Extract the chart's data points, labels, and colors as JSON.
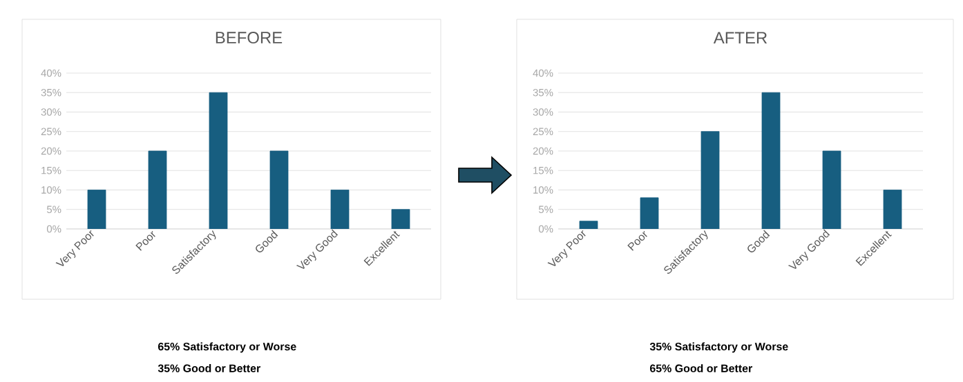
{
  "chart_data": [
    {
      "type": "bar",
      "title": "BEFORE",
      "categories": [
        "Very Poor",
        "Poor",
        "Satisfactory",
        "Good",
        "Very Good",
        "Excellent"
      ],
      "values": [
        10,
        20,
        35,
        20,
        10,
        5
      ],
      "color": "#175e80",
      "ylim": [
        0,
        40
      ],
      "yticks": [
        {
          "value": 0,
          "label": "0%"
        },
        {
          "value": 5,
          "label": "5%"
        },
        {
          "value": 10,
          "label": "10%"
        },
        {
          "value": 15,
          "label": "15%"
        },
        {
          "value": 20,
          "label": "20%"
        },
        {
          "value": 25,
          "label": "25%"
        },
        {
          "value": 30,
          "label": "30%"
        },
        {
          "value": 35,
          "label": "35%"
        },
        {
          "value": 40,
          "label": "40%"
        }
      ],
      "grid": "y",
      "annotations": [
        "65% Satisfactory or Worse",
        "35% Good or Better"
      ]
    },
    {
      "type": "bar",
      "title": "AFTER",
      "categories": [
        "Very Poor",
        "Poor",
        "Satisfactory",
        "Good",
        "Very Good",
        "Excellent"
      ],
      "values": [
        2,
        8,
        25,
        35,
        20,
        10
      ],
      "color": "#175e80",
      "ylim": [
        0,
        40
      ],
      "yticks": [
        {
          "value": 0,
          "label": "0%"
        },
        {
          "value": 5,
          "label": "5%"
        },
        {
          "value": 10,
          "label": "10%"
        },
        {
          "value": 15,
          "label": "15%"
        },
        {
          "value": 20,
          "label": "20%"
        },
        {
          "value": 25,
          "label": "25%"
        },
        {
          "value": 30,
          "label": "30%"
        },
        {
          "value": 35,
          "label": "35%"
        },
        {
          "value": 40,
          "label": "40%"
        }
      ],
      "grid": "y",
      "annotations": [
        "35% Satisfactory or Worse",
        "65% Good or Better"
      ]
    }
  ]
}
